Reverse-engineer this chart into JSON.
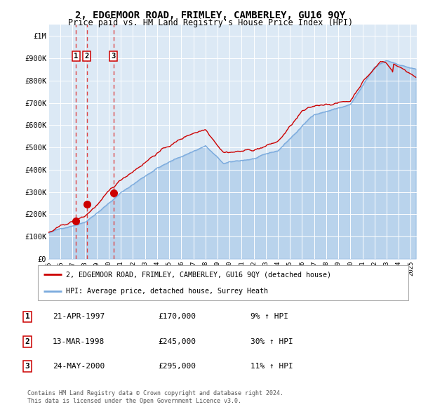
{
  "title": "2, EDGEMOOR ROAD, FRIMLEY, CAMBERLEY, GU16 9QY",
  "subtitle": "Price paid vs. HM Land Registry's House Price Index (HPI)",
  "ylim": [
    0,
    1050000
  ],
  "yticks": [
    0,
    100000,
    200000,
    300000,
    400000,
    500000,
    600000,
    700000,
    800000,
    900000,
    1000000
  ],
  "ytick_labels": [
    "£0",
    "£100K",
    "£200K",
    "£300K",
    "£400K",
    "£500K",
    "£600K",
    "£700K",
    "£800K",
    "£900K",
    "£1M"
  ],
  "xlim_start": 1995.0,
  "xlim_end": 2025.5,
  "xticks": [
    1995,
    1996,
    1997,
    1998,
    1999,
    2000,
    2001,
    2002,
    2003,
    2004,
    2005,
    2006,
    2007,
    2008,
    2009,
    2010,
    2011,
    2012,
    2013,
    2014,
    2015,
    2016,
    2017,
    2018,
    2019,
    2020,
    2021,
    2022,
    2023,
    2024,
    2025
  ],
  "sale_dates": [
    1997.29,
    1998.19,
    2000.38
  ],
  "sale_prices": [
    170000,
    245000,
    295000
  ],
  "sale_labels": [
    "1",
    "2",
    "3"
  ],
  "hpi_color": "#7aaadd",
  "price_color": "#cc0000",
  "sale_dot_color": "#cc0000",
  "dashed_line_color": "#dd4444",
  "legend_label_red": "2, EDGEMOOR ROAD, FRIMLEY, CAMBERLEY, GU16 9QY (detached house)",
  "legend_label_blue": "HPI: Average price, detached house, Surrey Heath",
  "table_rows": [
    {
      "num": "1",
      "date": "21-APR-1997",
      "price": "£170,000",
      "hpi": "9% ↑ HPI"
    },
    {
      "num": "2",
      "date": "13-MAR-1998",
      "price": "£245,000",
      "hpi": "30% ↑ HPI"
    },
    {
      "num": "3",
      "date": "24-MAY-2000",
      "price": "£295,000",
      "hpi": "11% ↑ HPI"
    }
  ],
  "footer": "Contains HM Land Registry data © Crown copyright and database right 2024.\nThis data is licensed under the Open Government Licence v3.0.",
  "seed": 42
}
